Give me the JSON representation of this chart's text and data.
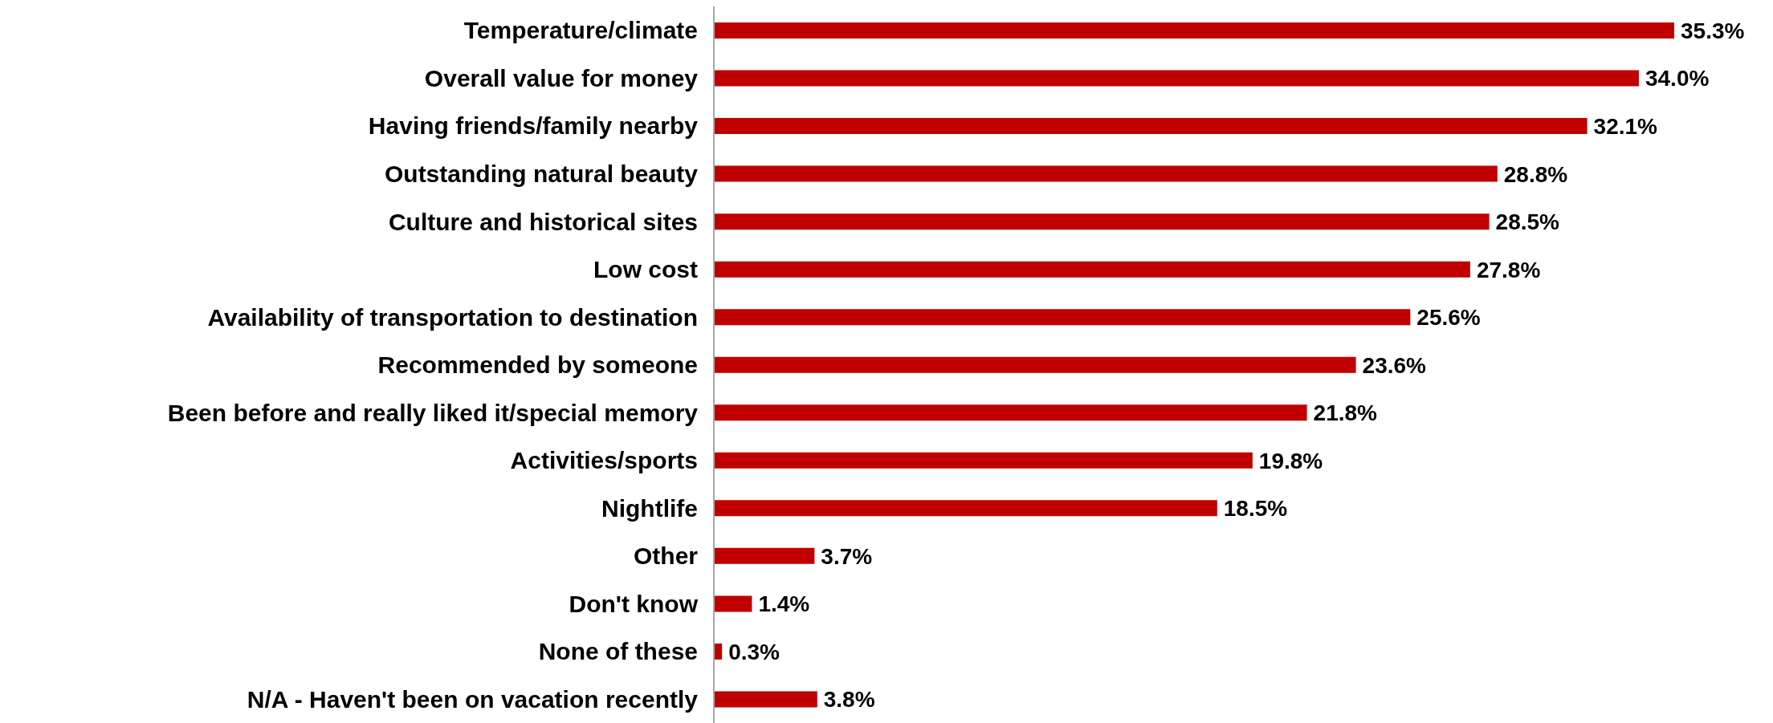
{
  "chart_data": {
    "type": "bar",
    "orientation": "horizontal",
    "categories": [
      "Temperature/climate",
      "Overall value for money",
      "Having friends/family nearby",
      "Outstanding natural beauty",
      "Culture and historical sites",
      "Low cost",
      "Availability of transportation to destination",
      "Recommended by someone",
      "Been before and really liked it/special memory",
      "Activities/sports",
      "Nightlife",
      "Other",
      "Don't know",
      "None of these",
      "N/A - Haven't been on vacation recently"
    ],
    "values": [
      35.3,
      34.0,
      32.1,
      28.8,
      28.5,
      27.8,
      25.6,
      23.6,
      21.8,
      19.8,
      18.5,
      3.7,
      1.4,
      0.3,
      3.8
    ],
    "value_labels": [
      "35.3%",
      "34.0%",
      "32.1%",
      "28.8%",
      "28.5%",
      "27.8%",
      "25.6%",
      "23.6%",
      "21.8%",
      "19.8%",
      "18.5%",
      "3.7%",
      "1.4%",
      "0.3%",
      "3.8%"
    ],
    "color": "#c00000"
  }
}
